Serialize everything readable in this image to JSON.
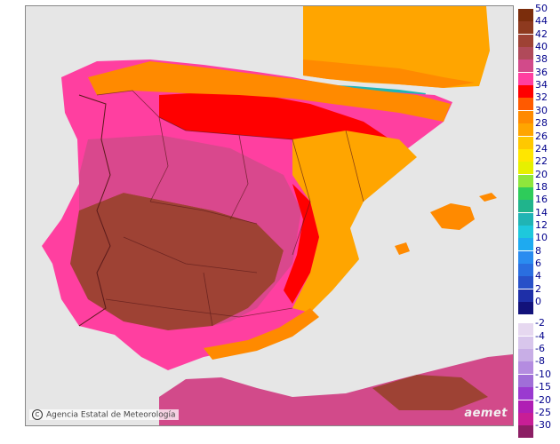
{
  "credit": "Agencia Estatal de Meteorología",
  "logo": "aemet",
  "legend": [
    {
      "label": "50",
      "color": "#7b2d0c"
    },
    {
      "label": "44",
      "color": "#8e3a1f"
    },
    {
      "label": "42",
      "color": "#9e4234"
    },
    {
      "label": "40",
      "color": "#b04a5a"
    },
    {
      "label": "38",
      "color": "#d24a8a"
    },
    {
      "label": "36",
      "color": "#ff3fa0"
    },
    {
      "label": "34",
      "color": "#ff0000"
    },
    {
      "label": "32",
      "color": "#ff5a00"
    },
    {
      "label": "30",
      "color": "#ff8a00"
    },
    {
      "label": "28",
      "color": "#ffa500"
    },
    {
      "label": "26",
      "color": "#ffc800"
    },
    {
      "label": "24",
      "color": "#ffe600"
    },
    {
      "label": "22",
      "color": "#e6f000"
    },
    {
      "label": "20",
      "color": "#8ee63c"
    },
    {
      "label": "18",
      "color": "#2ecc5a"
    },
    {
      "label": "16",
      "color": "#20b48c"
    },
    {
      "label": "14",
      "color": "#20b4b4"
    },
    {
      "label": "12",
      "color": "#1ec8dc"
    },
    {
      "label": "10",
      "color": "#1eaaf0"
    },
    {
      "label": "8",
      "color": "#2a8cf0"
    },
    {
      "label": "6",
      "color": "#2a6ee0"
    },
    {
      "label": "4",
      "color": "#2850c8"
    },
    {
      "label": "2",
      "color": "#1e2fa8"
    },
    {
      "label": "0",
      "color": "#12127a"
    },
    {
      "label": "-2",
      "color": "#e6d8f0"
    },
    {
      "label": "-4",
      "color": "#d8c6ec"
    },
    {
      "label": "-6",
      "color": "#c8aee6"
    },
    {
      "label": "-8",
      "color": "#b48ce0"
    },
    {
      "label": "-10",
      "color": "#a06ed8"
    },
    {
      "label": "-15",
      "color": "#9a3ad0"
    },
    {
      "label": "-20",
      "color": "#b01eb4"
    },
    {
      "label": "-25",
      "color": "#c81e96"
    },
    {
      "label": "-30",
      "color": "#8c1e64"
    }
  ],
  "colors": {
    "sea": "#e6e6e6",
    "very_hot": "#9e4234",
    "hot": "#d24a8a",
    "magenta": "#ff3fa0",
    "red": "#ff0000",
    "orange": "#ff8a00",
    "light_orange": "#ffa500",
    "yellow": "#ffc800",
    "cool": "#20b4b4"
  }
}
